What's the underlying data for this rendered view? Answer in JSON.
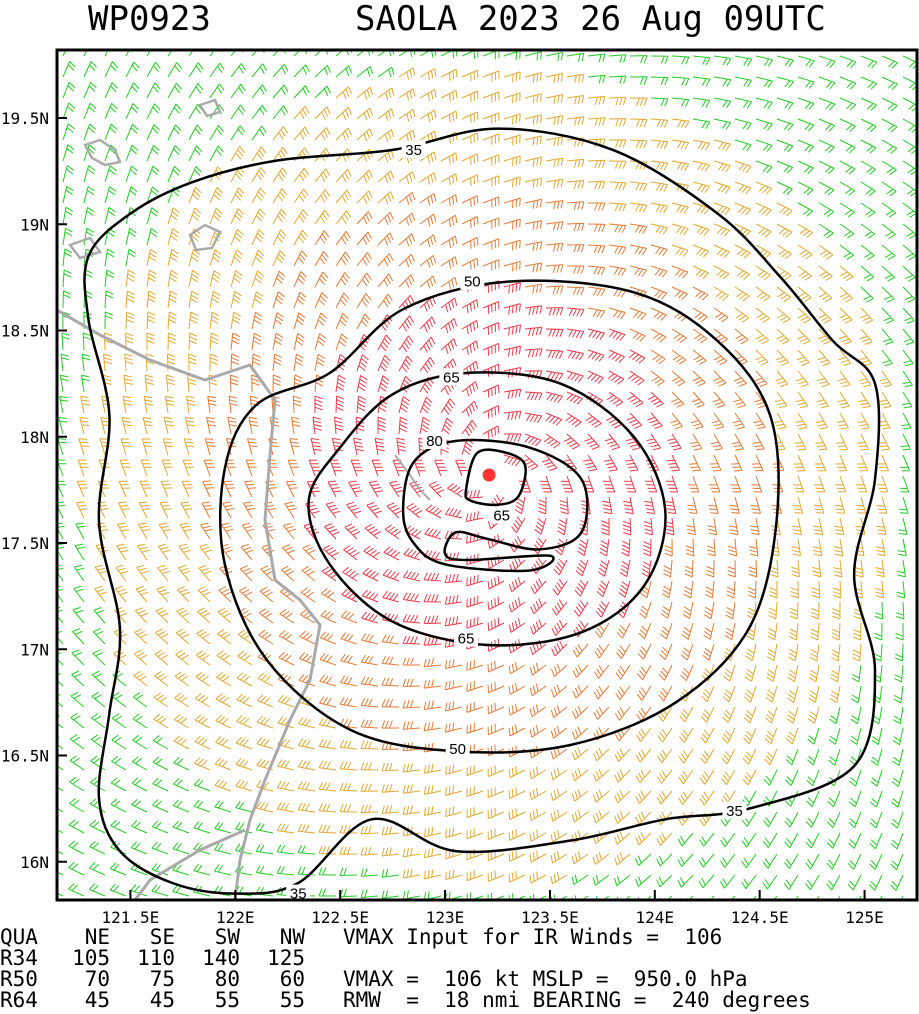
{
  "header": {
    "storm_id": "WP0923",
    "storm_title": "SAOLA 2023 26 Aug 09UTC"
  },
  "chart_data": {
    "type": "wind_barb_map",
    "xlim": [
      121.15,
      125.25
    ],
    "ylim": [
      15.82,
      19.82
    ],
    "x_ticks": [
      121.5,
      122.0,
      122.5,
      123.0,
      123.5,
      124.0,
      124.5,
      125.0
    ],
    "x_tick_labels": [
      "121.5E",
      "122E",
      "122.5E",
      "123E",
      "123.5E",
      "124E",
      "124.5E",
      "125E"
    ],
    "y_ticks": [
      16.0,
      16.5,
      17.0,
      17.5,
      18.0,
      18.5,
      19.0,
      19.5
    ],
    "y_tick_labels": [
      "16N",
      "16.5N",
      "17N",
      "17.5N",
      "18N",
      "18.5N",
      "19N",
      "19.5N"
    ],
    "center": {
      "lon": 123.21,
      "lat": 17.82
    },
    "contours": [
      {
        "level": 35,
        "label": "35",
        "label_points": [
          [
            122.85,
            19.35
          ],
          [
            124.38,
            16.24
          ],
          [
            122.3,
            15.85
          ]
        ],
        "points": [
          [
            121.35,
            16.3
          ],
          [
            121.4,
            16.7
          ],
          [
            121.45,
            17.1
          ],
          [
            121.35,
            17.6
          ],
          [
            121.4,
            18.1
          ],
          [
            121.3,
            18.55
          ],
          [
            121.3,
            18.85
          ],
          [
            121.5,
            19.05
          ],
          [
            121.8,
            19.2
          ],
          [
            122.2,
            19.3
          ],
          [
            122.75,
            19.35
          ],
          [
            123.25,
            19.45
          ],
          [
            123.8,
            19.35
          ],
          [
            124.3,
            19.05
          ],
          [
            124.6,
            18.75
          ],
          [
            124.85,
            18.45
          ],
          [
            125.05,
            18.25
          ],
          [
            125.05,
            17.8
          ],
          [
            124.95,
            17.35
          ],
          [
            125.05,
            16.9
          ],
          [
            124.95,
            16.45
          ],
          [
            124.45,
            16.25
          ],
          [
            124.05,
            16.2
          ],
          [
            123.6,
            16.1
          ],
          [
            123.05,
            16.05
          ],
          [
            122.65,
            16.2
          ],
          [
            122.3,
            15.9
          ],
          [
            122.0,
            15.85
          ],
          [
            121.7,
            15.9
          ],
          [
            121.45,
            16.05
          ]
        ]
      },
      {
        "level": 50,
        "label": "50",
        "label_points": [
          [
            123.13,
            18.73
          ],
          [
            123.06,
            16.53
          ]
        ],
        "points": [
          [
            122.45,
            18.3
          ],
          [
            122.8,
            18.6
          ],
          [
            123.3,
            18.73
          ],
          [
            123.9,
            18.68
          ],
          [
            124.3,
            18.45
          ],
          [
            124.55,
            18.1
          ],
          [
            124.58,
            17.6
          ],
          [
            124.45,
            17.1
          ],
          [
            124.1,
            16.75
          ],
          [
            123.6,
            16.55
          ],
          [
            123.05,
            16.52
          ],
          [
            122.55,
            16.62
          ],
          [
            122.15,
            16.95
          ],
          [
            121.95,
            17.4
          ],
          [
            121.95,
            17.85
          ],
          [
            122.1,
            18.15
          ]
        ]
      },
      {
        "level": 65,
        "label": "65",
        "label_points": [
          [
            123.03,
            18.28
          ],
          [
            123.1,
            17.05
          ],
          [
            123.27,
            17.63
          ]
        ],
        "points": [
          [
            122.5,
            17.95
          ],
          [
            122.75,
            18.2
          ],
          [
            123.1,
            18.3
          ],
          [
            123.55,
            18.25
          ],
          [
            123.9,
            18.0
          ],
          [
            124.05,
            17.65
          ],
          [
            123.95,
            17.3
          ],
          [
            123.65,
            17.08
          ],
          [
            123.2,
            17.02
          ],
          [
            122.75,
            17.13
          ],
          [
            122.45,
            17.4
          ],
          [
            122.35,
            17.7
          ]
        ]
      },
      {
        "level": 80,
        "label": "80",
        "label_points": [
          [
            122.95,
            17.98
          ]
        ],
        "points": [
          [
            122.8,
            17.65
          ],
          [
            122.85,
            17.88
          ],
          [
            123.05,
            17.98
          ],
          [
            123.4,
            17.95
          ],
          [
            123.65,
            17.8
          ],
          [
            123.65,
            17.55
          ],
          [
            123.45,
            17.47
          ],
          [
            123.2,
            17.52
          ],
          [
            123.05,
            17.55
          ],
          [
            123.0,
            17.45
          ],
          [
            123.1,
            17.42
          ],
          [
            123.5,
            17.44
          ],
          [
            123.4,
            17.37
          ],
          [
            123.0,
            17.4
          ],
          [
            122.85,
            17.5
          ]
        ]
      },
      {
        "level": 95,
        "label": "",
        "label_points": [],
        "points": [
          [
            123.1,
            17.75
          ],
          [
            123.15,
            17.92
          ],
          [
            123.27,
            17.93
          ],
          [
            123.38,
            17.87
          ],
          [
            123.35,
            17.72
          ],
          [
            123.25,
            17.68
          ],
          [
            123.12,
            17.7
          ]
        ]
      }
    ],
    "footer": {
      "rows": [
        [
          "QUA",
          "NE",
          "SE",
          "SW",
          "NW"
        ],
        [
          "R34",
          "105",
          "110",
          "140",
          "125"
        ],
        [
          "R50",
          "70",
          "75",
          "80",
          "60"
        ],
        [
          "R64",
          "45",
          "45",
          "55",
          "55"
        ]
      ],
      "vmax_ir_line": "VMAX Input for IR Winds =  106",
      "vmax_mslp_line": "VMAX =  106 kt MSLP =  950.0 hPa",
      "rmw_line": "RMW  =  18 nmi BEARING =  240 degrees"
    },
    "colors": {
      "speed_lt34": "#22cc22",
      "speed_34_50": "#e2a830",
      "speed_50_64": "#e57a35",
      "speed_ge64": "#ee3a4a",
      "center": "#ff3333",
      "coastline": "#aaaaaa",
      "contour": "#000000"
    }
  }
}
